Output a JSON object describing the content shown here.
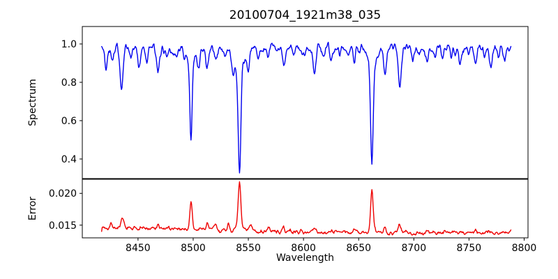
{
  "figure": {
    "title": "20100704_1921m38_035",
    "xlabel": "Wavelength",
    "background": "#ffffff",
    "axis_color": "#000000",
    "text_color": "#000000",
    "xticks": [
      {
        "value": 8450,
        "label": "8450"
      },
      {
        "value": 8500,
        "label": "8500"
      },
      {
        "value": 8550,
        "label": "8550"
      },
      {
        "value": 8600,
        "label": "8600"
      },
      {
        "value": 8650,
        "label": "8650"
      },
      {
        "value": 8700,
        "label": "8700"
      },
      {
        "value": 8750,
        "label": "8750"
      },
      {
        "value": 8800,
        "label": "8800"
      }
    ]
  },
  "chart_data": [
    {
      "type": "line",
      "name": "spectrum-panel",
      "ylabel": "Spectrum",
      "line_color": "#0000ee",
      "x_range": [
        8399.5,
        8803.5
      ],
      "y_range": [
        0.298,
        1.091
      ],
      "yticks": [
        {
          "value": 1.0,
          "label": "1.0"
        },
        {
          "value": 0.8,
          "label": "0.8"
        },
        {
          "value": 0.6,
          "label": "0.6"
        },
        {
          "value": 0.4,
          "label": "0.4"
        }
      ],
      "data_x_start": 8417,
      "data_x_end": 8788,
      "sample_step": 0.5,
      "continuum": 0.978,
      "clip_max": 1.035,
      "noise": {
        "seed": 42,
        "smooth_amp": 0.045,
        "fine_amp": 0.006,
        "smooth_passes": 3
      },
      "line_columns": [
        "center",
        "depth",
        "sigma",
        "broad_depth",
        "broad_sigma"
      ],
      "absorption_lines": [
        [
          8421,
          0.11,
          1.0
        ],
        [
          8427,
          0.05,
          1.0
        ],
        [
          8435,
          0.22,
          1.3
        ],
        [
          8443,
          0.05,
          1.0
        ],
        [
          8451,
          0.09,
          1.1
        ],
        [
          8458,
          0.06,
          1.0
        ],
        [
          8468,
          0.14,
          1.3
        ],
        [
          8476,
          0.04,
          1.0
        ],
        [
          8484,
          0.055,
          1.0
        ],
        [
          8492,
          0.05,
          1.0
        ],
        [
          8498,
          0.4,
          1.0,
          0.085,
          3.5
        ],
        [
          8505,
          0.085,
          1.0
        ],
        [
          8513,
          0.105,
          1.2
        ],
        [
          8521,
          0.075,
          1.1
        ],
        [
          8529,
          0.04,
          1.0
        ],
        [
          8536,
          0.055,
          1.2
        ],
        [
          8542,
          0.52,
          1.2,
          0.12,
          5.0
        ],
        [
          8550,
          0.08,
          1.0
        ],
        [
          8559,
          0.075,
          1.1
        ],
        [
          8568,
          0.05,
          1.0
        ],
        [
          8575,
          0.04,
          1.0
        ],
        [
          8582,
          0.075,
          1.2
        ],
        [
          8591,
          0.045,
          1.0
        ],
        [
          8599,
          0.035,
          1.0
        ],
        [
          8610,
          0.105,
          1.3
        ],
        [
          8618,
          0.03,
          0.9
        ],
        [
          8625,
          0.06,
          1.0
        ],
        [
          8633,
          0.035,
          0.9
        ],
        [
          8641,
          0.04,
          0.9
        ],
        [
          8646,
          0.075,
          1.0
        ],
        [
          8662,
          0.5,
          1.15,
          0.1,
          4.0
        ],
        [
          8674,
          0.14,
          1.2
        ],
        [
          8687,
          0.19,
          1.4
        ],
        [
          8699,
          0.05,
          1.0
        ],
        [
          8705,
          0.04,
          1.0
        ],
        [
          8712,
          0.07,
          1.1
        ],
        [
          8719,
          0.04,
          1.0
        ],
        [
          8726,
          0.06,
          1.0
        ],
        [
          8734,
          0.035,
          1.0
        ],
        [
          8742,
          0.065,
          1.1
        ],
        [
          8750,
          0.04,
          1.0
        ],
        [
          8756,
          0.085,
          1.1
        ],
        [
          8764,
          0.04,
          1.0
        ],
        [
          8770,
          0.1,
          1.2
        ],
        [
          8777,
          0.035,
          1.0
        ],
        [
          8782,
          0.055,
          1.0
        ]
      ]
    },
    {
      "type": "line",
      "name": "error-panel",
      "ylabel": "Error",
      "line_color": "#ee0000",
      "x_range": [
        8399.5,
        8803.5
      ],
      "y_range": [
        0.013,
        0.02222
      ],
      "yticks": [
        {
          "value": 0.02,
          "label": "0.020"
        },
        {
          "value": 0.015,
          "label": "0.015"
        }
      ],
      "data_x_start": 8417,
      "data_x_end": 8788,
      "sample_step": 0.5,
      "noise": {
        "seed": 7,
        "smooth_amp": 0.0006,
        "fine_amp": 0.00012,
        "smooth_passes": 3
      },
      "baseline_points": [
        [
          8417,
          0.0147
        ],
        [
          8450,
          0.01445
        ],
        [
          8480,
          0.01437
        ],
        [
          8510,
          0.01432
        ],
        [
          8538,
          0.0142
        ],
        [
          8560,
          0.01405
        ],
        [
          8600,
          0.01395
        ],
        [
          8640,
          0.01385
        ],
        [
          8670,
          0.0138
        ],
        [
          8700,
          0.0138
        ],
        [
          8750,
          0.01382
        ],
        [
          8788,
          0.0138
        ]
      ],
      "peak_columns": [
        "center",
        "amplitude",
        "sigma"
      ],
      "peaks": [
        [
          8426,
          0.0006,
          1.0
        ],
        [
          8436,
          0.0013,
          1.2
        ],
        [
          8452,
          0.0004,
          1.0
        ],
        [
          8468,
          0.0006,
          1.1
        ],
        [
          8484,
          0.0004,
          1.0
        ],
        [
          8498,
          0.0041,
          1.1
        ],
        [
          8513,
          0.0011,
          1.1
        ],
        [
          8520,
          0.0007,
          1.0
        ],
        [
          8532,
          0.0009,
          1.2
        ],
        [
          8542,
          0.0076,
          1.3
        ],
        [
          8552,
          0.0009,
          1.0
        ],
        [
          8568,
          0.0005,
          1.0
        ],
        [
          8582,
          0.0005,
          1.0
        ],
        [
          8610,
          0.0006,
          1.1
        ],
        [
          8625,
          0.0004,
          1.0
        ],
        [
          8646,
          0.0005,
          1.0
        ],
        [
          8662,
          0.0065,
          1.2
        ],
        [
          8674,
          0.001,
          1.1
        ],
        [
          8687,
          0.0012,
          1.2
        ],
        [
          8712,
          0.0004,
          1.0
        ],
        [
          8728,
          0.0004,
          1.0
        ],
        [
          8742,
          0.0003,
          1.0
        ],
        [
          8756,
          0.0004,
          1.0
        ],
        [
          8768,
          0.0005,
          1.0
        ]
      ]
    }
  ]
}
